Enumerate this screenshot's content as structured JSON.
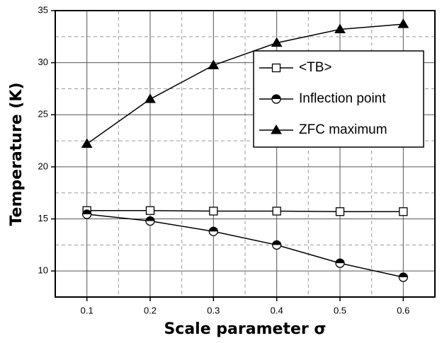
{
  "chart_data": {
    "type": "line",
    "xlabel": "Scale parameter σ",
    "ylabel": "Temperature (K)",
    "x": [
      0.1,
      0.2,
      0.3,
      0.4,
      0.5,
      0.6
    ],
    "series": [
      {
        "name": "<TB>",
        "color": "#000000",
        "marker": "square-open",
        "values": [
          15.8,
          15.8,
          15.75,
          15.75,
          15.7,
          15.7
        ]
      },
      {
        "name": "Inflection point",
        "color": "#000000",
        "marker": "circle-half",
        "values": [
          15.45,
          14.8,
          13.8,
          12.5,
          10.75,
          9.4
        ]
      },
      {
        "name": "ZFC maximum",
        "color": "#000000",
        "marker": "triangle-filled",
        "values": [
          22.2,
          26.5,
          29.75,
          31.9,
          33.2,
          33.7
        ]
      }
    ],
    "xlim": [
      0.05,
      0.65
    ],
    "ylim": [
      7.5,
      35
    ],
    "xticks": [
      0.1,
      0.2,
      0.3,
      0.4,
      0.5,
      0.6
    ],
    "yticks": [
      10,
      15,
      20,
      25,
      30,
      35
    ],
    "xminor_grid": [
      0.15,
      0.25,
      0.35,
      0.45,
      0.55
    ],
    "yminor_grid": [
      12.5,
      17.5,
      22.5,
      27.5,
      32.5
    ],
    "grid": true,
    "legend": "upper right"
  }
}
